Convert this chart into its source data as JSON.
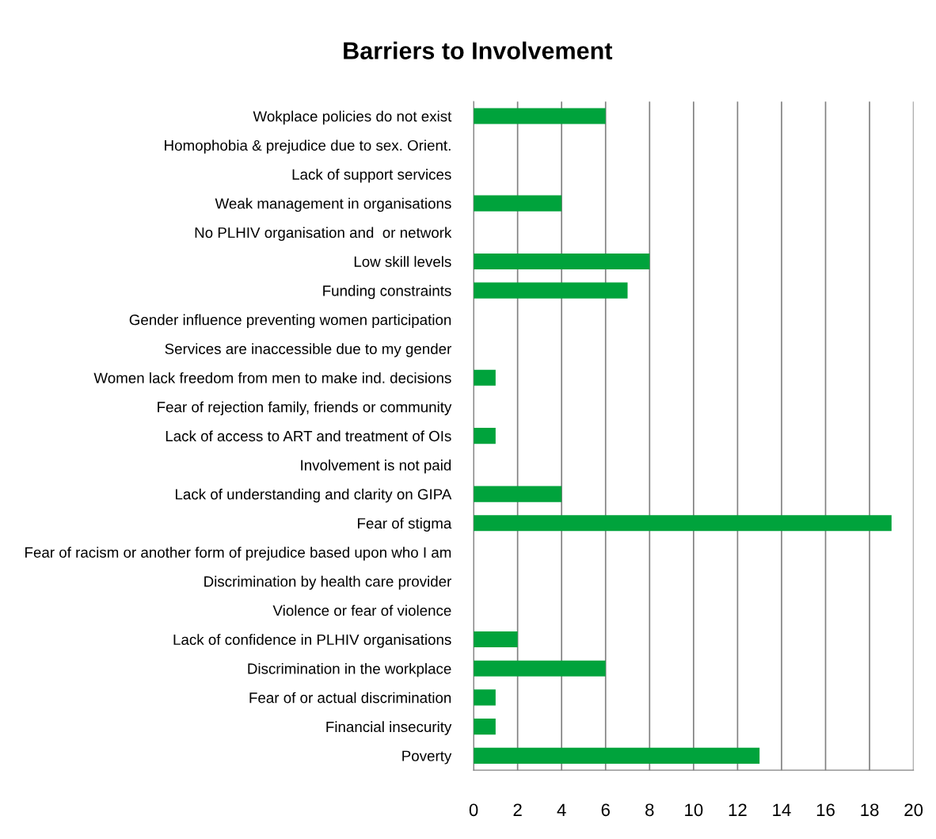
{
  "chart_data": {
    "type": "bar",
    "orientation": "horizontal",
    "title": "Barriers to Involvement",
    "categories": [
      "Wokplace policies do not exist",
      "Homophobia & prejudice due to sex. Orient.",
      "Lack of support services",
      "Weak management in organisations",
      "No PLHIV organisation and  or network",
      "Low skill levels",
      "Funding constraints",
      "Gender influence preventing women participation",
      "Services are inaccessible due to my gender",
      "Women lack freedom from men to make ind. decisions",
      "Fear of rejection family, friends or community",
      "Lack of access to ART and treatment of OIs",
      "Involvement is not paid",
      "Lack of understanding and clarity on GIPA",
      "Fear of stigma",
      "Fear of racism or another form of prejudice based upon who I am",
      "Discrimination by health care provider",
      "Violence or fear of violence",
      "Lack of confidence in PLHIV organisations",
      "Discrimination in the workplace",
      "Fear of or actual discrimination",
      "Financial insecurity",
      "Poverty"
    ],
    "values": [
      6,
      0,
      0,
      4,
      0,
      8,
      7,
      0,
      0,
      1,
      0,
      1,
      0,
      4,
      19,
      0,
      0,
      0,
      2,
      6,
      1,
      1,
      13
    ],
    "color": "#00a33c",
    "xlim": [
      0,
      20
    ],
    "xticks": [
      0,
      2,
      4,
      6,
      8,
      10,
      12,
      14,
      16,
      18,
      20
    ],
    "grid": "x",
    "legend": false
  }
}
